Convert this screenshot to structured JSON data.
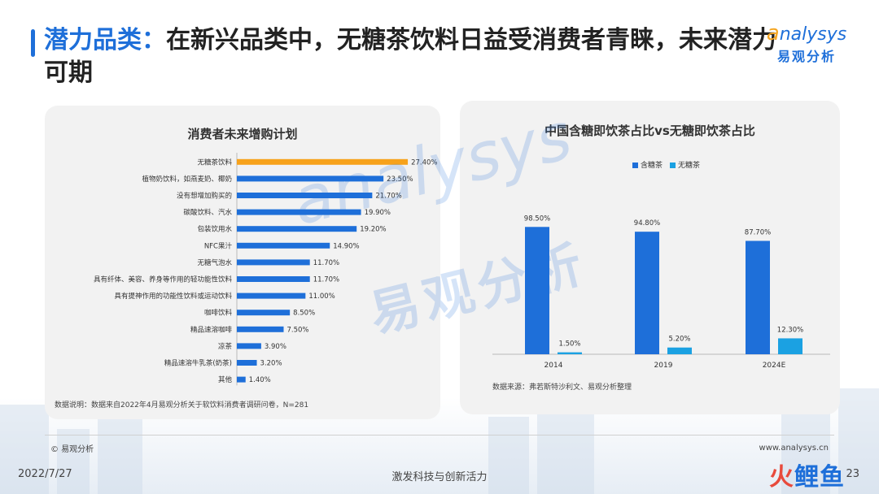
{
  "header": {
    "title_highlight": "潜力品类：",
    "title_rest": "在新兴品类中，无糖茶饮料日益受消费者青睐，未来潜力可期"
  },
  "logo": {
    "en_a": "a",
    "en_rest": "nalysys",
    "cn": "易观分析"
  },
  "watermark": {
    "en": "analysys",
    "cn": "易观分析"
  },
  "colors": {
    "primary": "#1e6fd9",
    "highlight": "#f7a21b",
    "light_blue": "#1ba1e2",
    "panel_bg": "#f2f2f2"
  },
  "left_panel": {
    "title": "消费者未来增购计划",
    "note": "数据说明：数据来自2022年4月易观分析关于软饮料消费者调研问卷，N=281"
  },
  "right_panel": {
    "title": "中国含糖即饮茶占比vs无糖即饮茶占比",
    "note": "数据来源：弗若斯特沙利文、易观分析整理"
  },
  "chart_data": [
    {
      "type": "bar",
      "orientation": "horizontal",
      "title": "消费者未来增购计划",
      "categories": [
        "无糖茶饮料",
        "植物奶饮料，如燕麦奶、椰奶",
        "没有想增加购买的",
        "碳酸饮料、汽水",
        "包装饮用水",
        "NFC果汁",
        "无糖气泡水",
        "具有纤体、美容、养身等作用的轻功能性饮料",
        "具有提神作用的功能性饮料或运动饮料",
        "咖啡饮料",
        "精品速溶咖啡",
        "凉茶",
        "精品速溶牛乳茶(奶茶)",
        "其他"
      ],
      "values": [
        27.4,
        23.5,
        21.7,
        19.9,
        19.2,
        14.9,
        11.7,
        11.7,
        11.0,
        8.5,
        7.5,
        3.9,
        3.2,
        1.4
      ],
      "labels": [
        "27.40%",
        "23.50%",
        "21.70%",
        "19.90%",
        "19.20%",
        "14.90%",
        "11.70%",
        "11.70%",
        "11.00%",
        "8.50%",
        "7.50%",
        "3.90%",
        "3.20%",
        "1.40%"
      ],
      "highlight_index": 0,
      "xlim": [
        0,
        30
      ],
      "grid": false
    },
    {
      "type": "bar",
      "title": "中国含糖即饮茶占比vs无糖即饮茶占比",
      "categories": [
        "2014",
        "2019",
        "2024E"
      ],
      "series": [
        {
          "name": "含糖茶",
          "values": [
            98.5,
            94.8,
            87.7
          ],
          "labels": [
            "98.50%",
            "94.80%",
            "87.70%"
          ],
          "color": "#1e6fd9"
        },
        {
          "name": "无糖茶",
          "values": [
            1.5,
            5.2,
            12.3
          ],
          "labels": [
            "1.50%",
            "5.20%",
            "12.30%"
          ],
          "color": "#1ba1e2"
        }
      ],
      "ylim": [
        0,
        110
      ],
      "legend": "top-center",
      "grid": false
    }
  ],
  "footer": {
    "copyright": "© 易观分析",
    "website": "www.analysys.cn",
    "date": "2022/7/27",
    "slogan": "激发科技与创新活力",
    "page": "23",
    "brand_1": "火",
    "brand_2": "鲤鱼"
  }
}
